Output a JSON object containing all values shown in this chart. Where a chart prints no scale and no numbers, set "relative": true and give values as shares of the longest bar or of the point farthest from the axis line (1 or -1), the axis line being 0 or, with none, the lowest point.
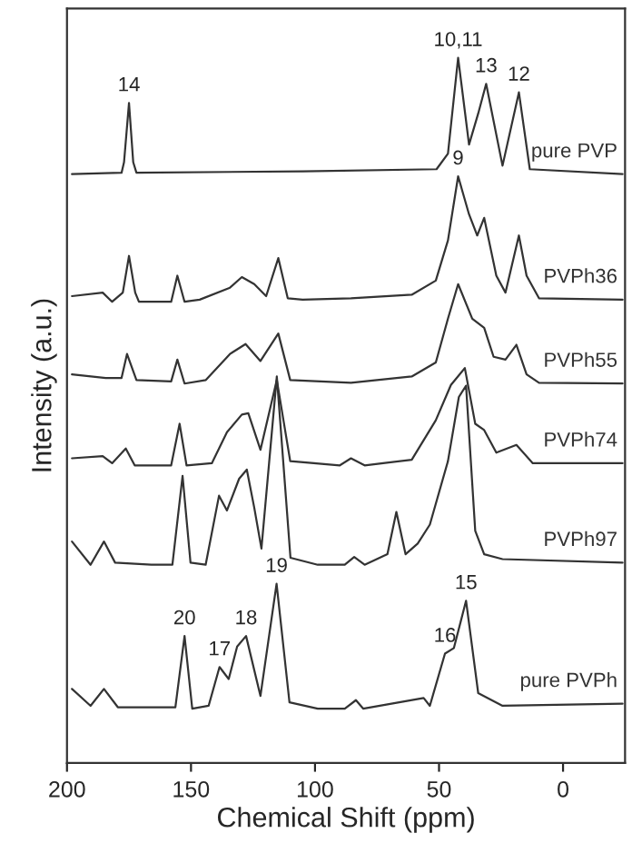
{
  "chart_data": {
    "type": "line",
    "xlabel": "Chemical Shift (ppm)",
    "ylabel": "Intensity (a.u.)",
    "relative": true,
    "xlim": [
      200,
      -25
    ],
    "xticks": [
      200,
      150,
      100,
      50,
      0
    ],
    "tick_labels": "x",
    "grid": false,
    "legend": false,
    "marker": "none",
    "line_style": "solid",
    "series": [
      {
        "name": "pure PVP",
        "color": "#333333",
        "x": [
          198,
          178,
          177,
          175,
          173.3,
          172,
          105,
          51,
          46.4,
          42.3,
          37.9,
          34.2,
          31,
          24.4,
          17.8,
          13.4,
          -24
        ],
        "values": [
          0.835,
          0.837,
          0.852,
          0.936,
          0.852,
          0.837,
          0.839,
          0.842,
          0.864,
          1.0,
          0.877,
          0.921,
          0.963,
          0.847,
          0.951,
          0.842,
          0.835
        ]
      },
      {
        "name": "PVPh36",
        "color": "#333333",
        "x": [
          198,
          185.6,
          181.8,
          177.5,
          175,
          172.5,
          171,
          158,
          155.5,
          152.6,
          146.5,
          134.3,
          129.5,
          124.5,
          119.7,
          114.8,
          111,
          105,
          85.5,
          61,
          51.3,
          46.4,
          42.3,
          37.9,
          34.6,
          31.8,
          26.9,
          23.2,
          17.8,
          14.7,
          9.7,
          -24
        ],
        "values": [
          0.662,
          0.667,
          0.654,
          0.667,
          0.719,
          0.667,
          0.654,
          0.654,
          0.691,
          0.654,
          0.657,
          0.674,
          0.689,
          0.679,
          0.662,
          0.716,
          0.659,
          0.657,
          0.659,
          0.664,
          0.684,
          0.741,
          0.832,
          0.778,
          0.748,
          0.773,
          0.691,
          0.667,
          0.748,
          0.691,
          0.659,
          0.657
        ]
      },
      {
        "name": "PVPh55",
        "color": "#333333",
        "x": [
          198,
          184.4,
          178,
          175.8,
          172,
          158,
          155.5,
          152.6,
          144,
          134.3,
          128,
          122,
          114.8,
          110,
          85.5,
          61,
          51.3,
          46.4,
          42.3,
          36.6,
          31.8,
          28,
          23.2,
          18.8,
          14.7,
          9.7,
          -24
        ],
        "values": [
          0.551,
          0.546,
          0.546,
          0.58,
          0.543,
          0.541,
          0.572,
          0.538,
          0.543,
          0.58,
          0.594,
          0.57,
          0.609,
          0.543,
          0.539,
          0.548,
          0.568,
          0.63,
          0.679,
          0.63,
          0.617,
          0.576,
          0.572,
          0.593,
          0.551,
          0.539,
          0.538
        ]
      },
      {
        "name": "PVPh74",
        "color": "#333333",
        "x": [
          198,
          185.6,
          181.8,
          176.3,
          172.7,
          158,
          154.6,
          151.8,
          141.6,
          135.5,
          129.5,
          126.9,
          122,
          115.4,
          110,
          90,
          85.5,
          80,
          61,
          51.3,
          45.2,
          39.6,
          35.4,
          31.8,
          26.9,
          18.8,
          12.2,
          -24
        ],
        "values": [
          0.432,
          0.435,
          0.425,
          0.446,
          0.422,
          0.422,
          0.481,
          0.422,
          0.425,
          0.469,
          0.494,
          0.496,
          0.444,
          0.543,
          0.428,
          0.422,
          0.432,
          0.422,
          0.43,
          0.486,
          0.536,
          0.56,
          0.481,
          0.472,
          0.44,
          0.451,
          0.425,
          0.425
        ]
      },
      {
        "name": "PVPh97",
        "color": "#333333",
        "x": [
          198,
          190.5,
          185.1,
          180.6,
          166,
          157.5,
          153.4,
          150.2,
          144.1,
          138.7,
          135.5,
          130.6,
          127.5,
          124.5,
          121.6,
          115.4,
          109.9,
          98.9,
          88,
          84.2,
          80,
          70.8,
          67.2,
          63.5,
          58.6,
          53.7,
          46.4,
          42,
          39.1,
          35.4,
          31.8,
          24.4,
          -24
        ],
        "values": [
          0.314,
          0.281,
          0.314,
          0.284,
          0.281,
          0.281,
          0.407,
          0.284,
          0.281,
          0.379,
          0.358,
          0.403,
          0.416,
          0.362,
          0.304,
          0.548,
          0.291,
          0.281,
          0.281,
          0.292,
          0.281,
          0.296,
          0.356,
          0.296,
          0.311,
          0.338,
          0.428,
          0.519,
          0.535,
          0.329,
          0.296,
          0.289,
          0.284
        ]
      },
      {
        "name": "pure PVPh",
        "color": "#333333",
        "x": [
          198,
          190.5,
          185.1,
          179.5,
          156.3,
          152.6,
          149.5,
          142.9,
          138.5,
          134.8,
          131.4,
          127.8,
          122,
          115.5,
          110.3,
          98.9,
          88,
          83.5,
          80.6,
          56.2,
          53.7,
          47.6,
          44,
          39.1,
          34.2,
          24.4,
          -24
        ],
        "values": [
          0.105,
          0.081,
          0.105,
          0.079,
          0.079,
          0.18,
          0.077,
          0.081,
          0.136,
          0.119,
          0.165,
          0.18,
          0.095,
          0.254,
          0.086,
          0.077,
          0.077,
          0.089,
          0.077,
          0.092,
          0.081,
          0.155,
          0.163,
          0.23,
          0.099,
          0.081,
          0.084
        ]
      }
    ],
    "annotations": [
      {
        "text": "14",
        "x": 175,
        "y": 0.936
      },
      {
        "text": "10,11",
        "x": 42.3,
        "y": 1.0
      },
      {
        "text": "13",
        "x": 31,
        "y": 0.963
      },
      {
        "text": "12",
        "x": 17.8,
        "y": 0.951
      },
      {
        "text": "9",
        "x": 42.3,
        "y": 0.832
      },
      {
        "text": "20",
        "x": 152.6,
        "y": 0.18
      },
      {
        "text": "17",
        "x": 138.5,
        "y": 0.136
      },
      {
        "text": "18",
        "x": 127.8,
        "y": 0.18
      },
      {
        "text": "19",
        "x": 115.5,
        "y": 0.254
      },
      {
        "text": "16",
        "x": 47.6,
        "y": 0.155
      },
      {
        "text": "15",
        "x": 39.1,
        "y": 0.23
      }
    ]
  }
}
